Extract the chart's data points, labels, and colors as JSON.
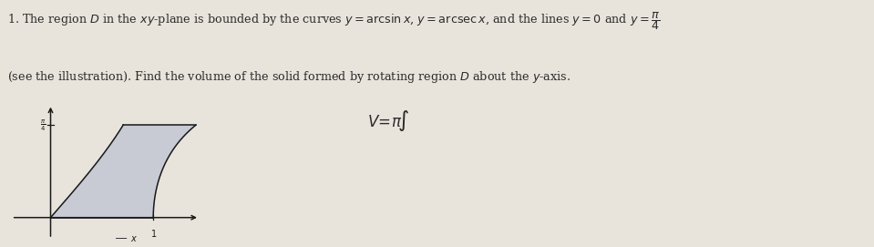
{
  "bg_color": "#e8e4dc",
  "text_color": "#2a2a2a",
  "shaded_color": "#c5c8d4",
  "axes_color": "#1a1a1a",
  "plot_xlim": [
    -0.45,
    1.55
  ],
  "plot_ylim": [
    -0.25,
    1.05
  ],
  "pi_over_4": 0.7853981633974483,
  "fig_width": 9.59,
  "fig_height": 2.71,
  "dpi": 100,
  "line1": "1. The region $D$ in the $xy$-plane is bounded by the curves $y = \\arcsin x$, $y = \\mathrm{arcsec}\\, x$, and the lines $y = 0$ and $y = \\dfrac{\\pi}{4}$",
  "line2": "(see the illustration). Find the volume of the solid formed by rotating region $D$ about the $y$-axis.",
  "formula": "$V\\!=\\!\\pi\\!\\int$",
  "fontsize_main": 9.2,
  "fontsize_formula": 12
}
